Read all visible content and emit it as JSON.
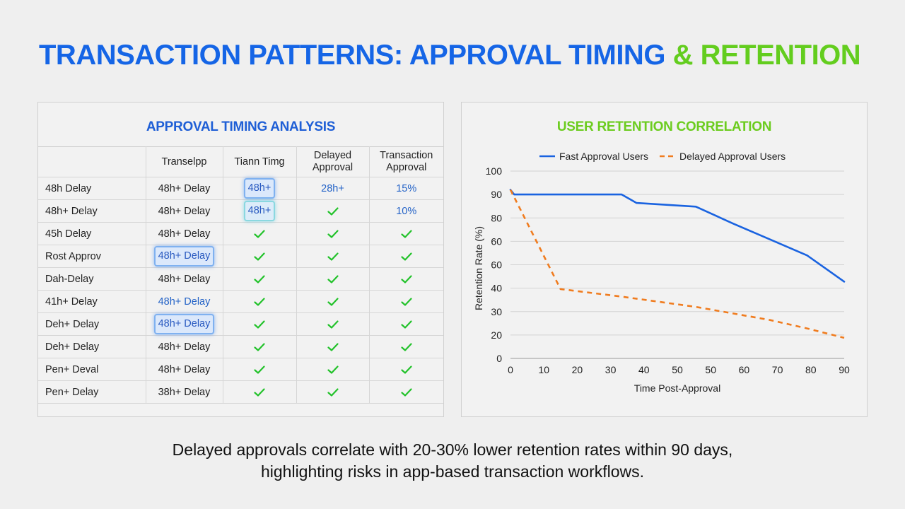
{
  "title": {
    "main": "TRANSACTION PATTERNS: APPROVAL TIMING",
    "accent": "& RETENTION"
  },
  "colors": {
    "blue": "#1565e6",
    "green": "#63cd1e",
    "check": "#22c22a",
    "fast": "#1a63e0",
    "delayed": "#f07c1f"
  },
  "table": {
    "title": "APPROVAL TIMING ANALYSIS",
    "headers": [
      "",
      "Transelpp",
      "Tiann Timg",
      "Delayed Approval",
      "Transaction Approval"
    ],
    "rows": [
      [
        "48h Delay",
        "48h+ Delay",
        "48h+",
        "28h+",
        "15%"
      ],
      [
        "48h+ Delay",
        "48h+ Delay",
        "48h+",
        "check",
        "10%"
      ],
      [
        "45h Delay",
        "48h+ Delay",
        "check",
        "check",
        "check"
      ],
      [
        "Rost Approv",
        "48h+ Delay",
        "check",
        "check",
        "check"
      ],
      [
        "Dah-Delay",
        "48h+ Delay",
        "check",
        "check",
        "check"
      ],
      [
        "41h+ Delay",
        "48h+ Delay",
        "check",
        "check",
        "check"
      ],
      [
        "Deh+ Delay",
        "48h+ Delay",
        "check",
        "check",
        "check"
      ],
      [
        "Deh+ Delay",
        "48h+ Delay",
        "check",
        "check",
        "check"
      ],
      [
        "Pen+ Deval",
        "48h+ Delay",
        "check",
        "check",
        "check"
      ],
      [
        "Pen+ Delay",
        "38h+ Delay",
        "check",
        "check",
        "check"
      ]
    ]
  },
  "chart_data": {
    "type": "line",
    "title": "USER RETENTION CORRELATION",
    "xlabel": "Time Post-Approval",
    "ylabel": "Retention Rate (%)",
    "xlim": [
      0,
      90
    ],
    "ylim": [
      0,
      100
    ],
    "x_ticks": [
      "0",
      "10",
      "20",
      "30",
      "40",
      "50",
      "50",
      "60",
      "70",
      "80",
      "90"
    ],
    "y_ticks": [
      "0",
      "20",
      "30",
      "40",
      "60",
      "60",
      "80",
      "90",
      "100"
    ],
    "legend_position": "top",
    "grid": true,
    "series": [
      {
        "name": "Fast Approval Users",
        "style": "solid",
        "points": [
          [
            0,
            90
          ],
          [
            1,
            87.5
          ],
          [
            10,
            87.5
          ],
          [
            20,
            87.5
          ],
          [
            30,
            87.5
          ],
          [
            34,
            83
          ],
          [
            50,
            81
          ],
          [
            60,
            72
          ],
          [
            70,
            63.5
          ],
          [
            80,
            55
          ],
          [
            90,
            41
          ]
        ]
      },
      {
        "name": "Delayed Approval Users",
        "style": "dashed",
        "points": [
          [
            0,
            90
          ],
          [
            13.5,
            37
          ],
          [
            30,
            33
          ],
          [
            50,
            27.5
          ],
          [
            60,
            24
          ],
          [
            70,
            20.5
          ],
          [
            80,
            16
          ],
          [
            90,
            11
          ]
        ]
      }
    ]
  },
  "caption": {
    "line1": "Delayed approvals correlate with 20-30% lower retention rates within 90 days,",
    "line2": "highlighting risks in app-based transaction workflows."
  }
}
